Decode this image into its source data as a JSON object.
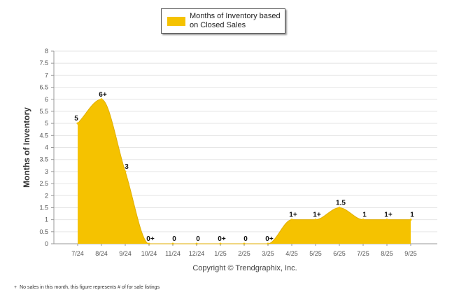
{
  "legend": {
    "label": "Months of Inventory based on Closed Sales"
  },
  "copyright": "Copyright © Trendgraphix, Inc.",
  "footnote": {
    "mark": "+",
    "text": "No sales in this month, this figure represents # of for sale listings"
  },
  "colors": {
    "series": "#f5c200",
    "grid": "#e6e6e6",
    "axis": "#999999",
    "text": "#555555"
  },
  "chart_data": {
    "type": "area",
    "ylabel": "Months of Inventory",
    "xlabel": "",
    "ylim": [
      0,
      8
    ],
    "yticks": [
      "0",
      "0.5",
      "1",
      "1.5",
      "2",
      "2.5",
      "3",
      "3.5",
      "4",
      "4.5",
      "5",
      "5.5",
      "6",
      "6.5",
      "7",
      "7.5",
      "8"
    ],
    "grid": true,
    "legend_position": "top-center",
    "categories": [
      "7/24",
      "8/24",
      "9/24",
      "10/24",
      "11/24",
      "12/24",
      "1/25",
      "2/25",
      "3/25",
      "4/25",
      "5/25",
      "6/25",
      "7/25",
      "8/25",
      "9/25"
    ],
    "series": [
      {
        "name": "Months of Inventory based on Closed Sales",
        "values": [
          5,
          6,
          3,
          0,
          0,
          0,
          0,
          0,
          0,
          1,
          1,
          1.5,
          1,
          1,
          1
        ],
        "data_labels": [
          "5",
          "6+",
          "3",
          "0+",
          "0",
          "0",
          "0+",
          "0",
          "0+",
          "1+",
          "1+",
          "1.5",
          "1",
          "1+",
          "1"
        ]
      }
    ]
  }
}
